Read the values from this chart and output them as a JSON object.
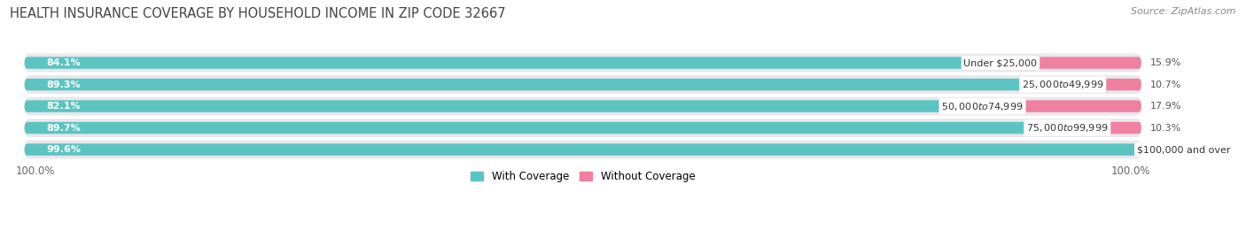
{
  "title": "HEALTH INSURANCE COVERAGE BY HOUSEHOLD INCOME IN ZIP CODE 32667",
  "source": "Source: ZipAtlas.com",
  "categories": [
    "Under $25,000",
    "$25,000 to $49,999",
    "$50,000 to $74,999",
    "$75,000 to $99,999",
    "$100,000 and over"
  ],
  "with_coverage": [
    84.1,
    89.3,
    82.1,
    89.7,
    99.6
  ],
  "without_coverage": [
    15.9,
    10.7,
    17.9,
    10.3,
    0.45
  ],
  "color_with": "#5BC4C0",
  "color_without": "#F080A0",
  "row_bg_color": "#E8E8EC",
  "legend_with": "With Coverage",
  "legend_without": "Without Coverage",
  "left_label": "100.0%",
  "right_label": "100.0%",
  "title_fontsize": 10.5,
  "source_fontsize": 8,
  "label_fontsize": 8.5,
  "bar_label_fontsize": 8,
  "category_fontsize": 8
}
